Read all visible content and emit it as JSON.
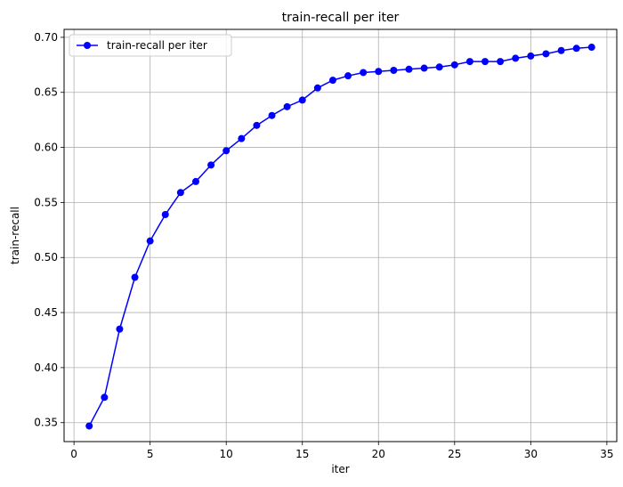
{
  "chart_data": {
    "type": "line",
    "title": "train-recall per iter",
    "xlabel": "iter",
    "ylabel": "train-recall",
    "xlim": [
      -0.65,
      35.65
    ],
    "ylim": [
      0.3328,
      0.7072
    ],
    "xticks": [
      0,
      5,
      10,
      15,
      20,
      25,
      30,
      35
    ],
    "yticks": [
      0.35,
      0.4,
      0.45,
      0.5,
      0.55,
      0.6,
      0.65,
      0.7
    ],
    "xtick_labels": [
      "0",
      "5",
      "10",
      "15",
      "20",
      "25",
      "30",
      "35"
    ],
    "ytick_labels": [
      "0.35",
      "0.40",
      "0.45",
      "0.50",
      "0.55",
      "0.60",
      "0.65",
      "0.70"
    ],
    "grid": true,
    "legend_position": "top-left",
    "series": [
      {
        "name": "train-recall per iter",
        "color": "#0000ff",
        "marker": "circle",
        "x": [
          1,
          2,
          3,
          4,
          5,
          6,
          7,
          8,
          9,
          10,
          11,
          12,
          13,
          14,
          15,
          16,
          17,
          18,
          19,
          20,
          21,
          22,
          23,
          24,
          25,
          26,
          27,
          28,
          29,
          30,
          31,
          32,
          33,
          34
        ],
        "y": [
          0.347,
          0.373,
          0.435,
          0.482,
          0.515,
          0.539,
          0.559,
          0.569,
          0.584,
          0.597,
          0.608,
          0.62,
          0.629,
          0.637,
          0.643,
          0.654,
          0.661,
          0.665,
          0.668,
          0.669,
          0.67,
          0.671,
          0.672,
          0.673,
          0.675,
          0.678,
          0.678,
          0.678,
          0.681,
          0.683,
          0.685,
          0.688,
          0.69,
          0.691
        ]
      }
    ]
  }
}
